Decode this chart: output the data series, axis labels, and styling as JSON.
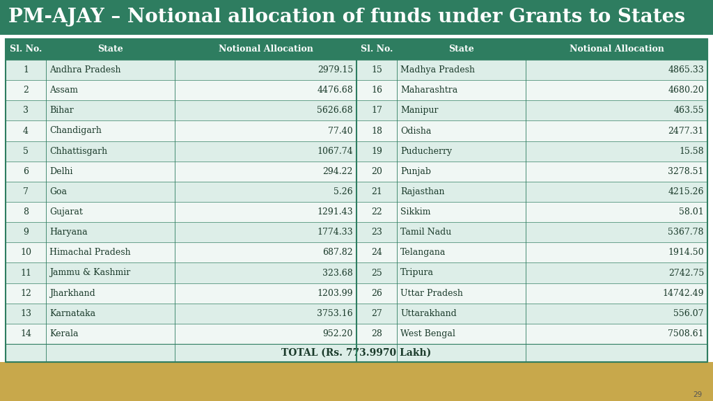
{
  "title": "PM-AJAY – Notional allocation of funds under Grants to States",
  "title_bg": "#2e7d60",
  "title_color": "#ffffff",
  "header_bg": "#2e7d60",
  "header_color": "#ffffff",
  "row_bg_odd": "#ddeee8",
  "row_bg_even": "#f0f7f4",
  "total_row_bg": "#ddeee8",
  "footer_bg": "#c8a84b",
  "col_headers": [
    "Sl. No.",
    "State",
    "Notional Allocation"
  ],
  "left_data": [
    [
      1,
      "Andhra Pradesh",
      "2979.15"
    ],
    [
      2,
      "Assam",
      "4476.68"
    ],
    [
      3,
      "Bihar",
      "5626.68"
    ],
    [
      4,
      "Chandigarh",
      "77.40"
    ],
    [
      5,
      "Chhattisgarh",
      "1067.74"
    ],
    [
      6,
      "Delhi",
      "294.22"
    ],
    [
      7,
      "Goa",
      "5.26"
    ],
    [
      8,
      "Gujarat",
      "1291.43"
    ],
    [
      9,
      "Haryana",
      "1774.33"
    ],
    [
      10,
      "Himachal Pradesh",
      "687.82"
    ],
    [
      11,
      "Jammu & Kashmir",
      "323.68"
    ],
    [
      12,
      "Jharkhand",
      "1203.99"
    ],
    [
      13,
      "Karnataka",
      "3753.16"
    ],
    [
      14,
      "Kerala",
      "952.20"
    ]
  ],
  "right_data": [
    [
      15,
      "Madhya Pradesh",
      "4865.33"
    ],
    [
      16,
      "Maharashtra",
      "4680.20"
    ],
    [
      17,
      "Manipur",
      "463.55"
    ],
    [
      18,
      "Odisha",
      "2477.31"
    ],
    [
      19,
      "Puducherry",
      "15.58"
    ],
    [
      20,
      "Punjab",
      "3278.51"
    ],
    [
      21,
      "Rajasthan",
      "4215.26"
    ],
    [
      22,
      "Sikkim",
      "58.01"
    ],
    [
      23,
      "Tamil Nadu",
      "5367.78"
    ],
    [
      24,
      "Telangana",
      "1914.50"
    ],
    [
      25,
      "Tripura",
      "2742.75"
    ],
    [
      26,
      "Uttar Pradesh",
      "14742.49"
    ],
    [
      27,
      "Uttarakhand",
      "556.07"
    ],
    [
      28,
      "West Bengal",
      "7508.61"
    ]
  ],
  "total_text": "TOTAL (Rs. 773.9970 Lakh)",
  "border_color": "#2e7d60",
  "text_color": "#1a3a2a",
  "page_number": "29",
  "title_fontsize": 20,
  "header_fontsize": 9,
  "data_fontsize": 9,
  "total_fontsize": 10
}
